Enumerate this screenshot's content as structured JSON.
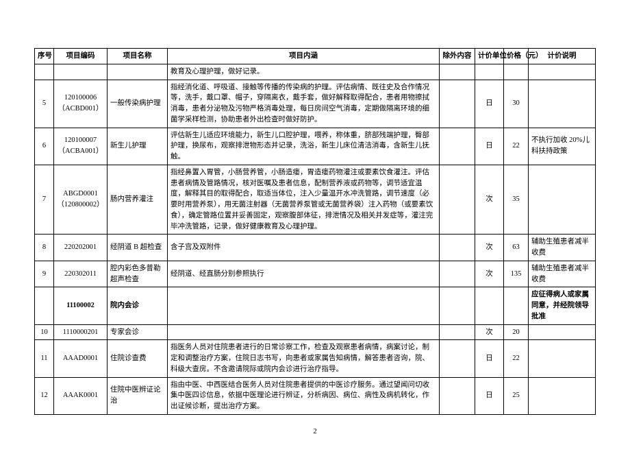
{
  "headers": {
    "xh": "序号",
    "bm": "项目编码",
    "mc": "项目名称",
    "nh": "项目内涵",
    "cw": "除外内容",
    "dw": "计价单位",
    "jg": "价格（元）",
    "sm": "计价说明"
  },
  "rows": [
    {
      "xh": "",
      "bm": "",
      "mc": "",
      "nh": "教育及心理护理，做好记录。",
      "cw": "",
      "dw": "",
      "jg": "",
      "sm": ""
    },
    {
      "xh": "5",
      "bm": "120100006（ACBD001）",
      "mc": "一般传染病护理",
      "nh": "指经消化道、呼吸道、接触等传播的传染病的护理。评估病情、既往史及合作情况等，洗手，戴口罩、帽子，穿隔离衣，戴手套，做好解释取得配合，患者用物擦拭消毒，患者分泌物及污物严格消毒处理，每日房间空气消毒，定期做隔离环境的细菌学采样检测，协助患者外出检查时做好防护。",
      "cw": "",
      "dw": "日",
      "jg": "30",
      "sm": ""
    },
    {
      "xh": "6",
      "bm": "120100007（ACBA001）",
      "mc": "新生儿护理",
      "nh": "评估新生儿适应环境能力，新生儿口腔护理，喂养，称体重，脐部残端护理，臀部护理，换尿布，观察排泄物形态并记录，洗浴，新生儿床位清洁消毒，含新生儿抚触。",
      "cw": "",
      "dw": "日",
      "jg": "22",
      "sm": "不执行加收 20%儿科扶持政策"
    },
    {
      "xh": "7",
      "bm": "ABGD0001（120800002）",
      "mc": "肠内营养灌注",
      "nh": "指经鼻置入胃管，小肠营养管，小肠造瘘，胃造瘘药物灌注或要素饮食灌注。评估患者病情及管路情况，核对医嘱及患者信息，配制营养液或药物等，调节适宜温度，解释其目的取得配合，取适当体位，注入少量温开水冲洗管路，调节速度（必要时用营养泵），用无菌注射器（无菌营养泵管或无菌营养袋）注入药物（或要素饮食），确定管路位置并妥善固定，观察腹部体征，排泄情况及相关并发症等，灌注完毕冲洗管路，记录，做好健康教育及心理护理。",
      "cw": "",
      "dw": "次",
      "jg": "35",
      "sm": ""
    },
    {
      "xh": "8",
      "bm": "220202001",
      "mc": "经阴道 B 超检查",
      "nh": "含子宫及双附件",
      "cw": "",
      "dw": "次",
      "jg": "63",
      "sm": "辅助生殖患者减半收费"
    },
    {
      "xh": "9",
      "bm": "220302011",
      "mc": "腔内彩色多普勒超声检查",
      "nh": "经阴道、经直肠分别参照执行",
      "cw": "",
      "dw": "次",
      "jg": "135",
      "sm": "辅助生殖患者减半收费"
    },
    {
      "xh": "",
      "bm": "11100002",
      "mc": "院内会诊",
      "nh": "",
      "cw": "",
      "dw": "",
      "jg": "",
      "sm": "应征得病人或家属同意，并经院领导批准",
      "bold": true
    },
    {
      "xh": "10",
      "bm": "1110000201",
      "mc": "专家会诊",
      "nh": "",
      "cw": "",
      "dw": "次",
      "jg": "20",
      "sm": ""
    },
    {
      "xh": "11",
      "bm": "AAAD0001",
      "mc": "住院诊查费",
      "nh": "指医务人员对住院患者进行的日常诊察工作，检查及观察患者病情，病案讨论，制定和调整治疗方案，住院日志书写，向患者或家属告知病情，解答患者咨询，院、科级大查房。不含邀请院际或院内会诊进行治疗指导。",
      "cw": "",
      "dw": "日",
      "jg": "22",
      "sm": ""
    },
    {
      "xh": "12",
      "bm": "AAAK0001",
      "mc": "住院中医辨证论治",
      "nh": "指由中医、中西医结合医务人员对住院患者提供的中医诊疗服务。通过望闻问切收集中医四诊信息，依据中医理论进行辨证，分析病因、病位、病性及病机转化，作出证候诊断，提出治疗方案。",
      "cw": "",
      "dw": "日",
      "jg": "25",
      "sm": ""
    }
  ],
  "page": "2"
}
